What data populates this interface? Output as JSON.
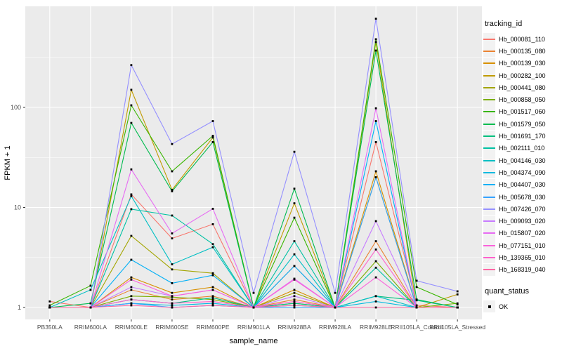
{
  "chart_data": {
    "type": "line",
    "title": "",
    "xlabel": "sample_name",
    "ylabel": "FPKM + 1",
    "y_scale": "log10",
    "y_tick_labels": [
      "1",
      "10",
      "100"
    ],
    "y_tick_values": [
      1,
      10,
      100
    ],
    "y_minor_gridlines": [
      3.1623,
      31.623,
      316.23
    ],
    "ylim": [
      0.93,
      1020
    ],
    "grid": "on",
    "legend_position": "right",
    "legend_title": "tracking_id",
    "point_legend": {
      "title": "quant_status",
      "label": "OK"
    },
    "panel_bg": "#EBEBEB",
    "grid_color": "#FFFFFF",
    "tick_label_color": "#4D4D4D",
    "point_color": "#000000",
    "categories": [
      "PB350LA",
      "RRIM600LA",
      "RRIM600LE",
      "RRIM600SE",
      "RRIM600PE",
      "RRIM901LA",
      "RRIM928BA",
      "RRIM928LA",
      "RRIM928LE",
      "RRII105LA_Control",
      "RRII105LA_Stressed"
    ],
    "series": [
      {
        "name": "Hb_000081_110",
        "color": "#F8766D",
        "values": [
          1.15,
          1.0,
          13.5,
          4.9,
          6.8,
          1.0,
          2.6,
          1.0,
          45,
          1.05,
          1.0
        ]
      },
      {
        "name": "Hb_000135_080",
        "color": "#EA8331",
        "values": [
          1.0,
          1.0,
          1.5,
          1.2,
          1.3,
          1.0,
          1.2,
          1.0,
          4.6,
          1.0,
          1.0
        ]
      },
      {
        "name": "Hb_000139_030",
        "color": "#D89000",
        "values": [
          1.0,
          1.0,
          2.0,
          1.4,
          1.6,
          1.0,
          1.5,
          1.0,
          23,
          1.0,
          1.0
        ]
      },
      {
        "name": "Hb_000282_100",
        "color": "#C09B00",
        "values": [
          1.0,
          1.0,
          150,
          15,
          50,
          1.0,
          11,
          1.0,
          450,
          1.0,
          1.35
        ]
      },
      {
        "name": "Hb_000441_080",
        "color": "#A3A500",
        "values": [
          1.0,
          1.0,
          5.2,
          2.4,
          2.2,
          1.0,
          1.4,
          1.0,
          20,
          1.0,
          1.0
        ]
      },
      {
        "name": "Hb_000858_050",
        "color": "#7CAE00",
        "values": [
          1.0,
          1.0,
          1.3,
          1.27,
          1.2,
          1.0,
          1.1,
          1.0,
          2.9,
          1.0,
          1.1
        ]
      },
      {
        "name": "Hb_001517_060",
        "color": "#39B600",
        "values": [
          1.05,
          1.65,
          105,
          23,
          52,
          1.0,
          7.9,
          1.0,
          480,
          1.6,
          1.07
        ]
      },
      {
        "name": "Hb_001579_050",
        "color": "#00BB4E",
        "values": [
          1.0,
          1.1,
          70,
          14.5,
          45,
          1.0,
          15.4,
          1.0,
          370,
          1.2,
          1.0
        ]
      },
      {
        "name": "Hb_001691_170",
        "color": "#00BF7D",
        "values": [
          1.0,
          1.0,
          1.2,
          1.1,
          1.25,
          1.0,
          1.1,
          1.0,
          1.3,
          1.18,
          1.0
        ]
      },
      {
        "name": "Hb_002111_010",
        "color": "#00C1A3",
        "values": [
          1.0,
          1.0,
          9.6,
          8.3,
          4.3,
          1.0,
          4.6,
          1.0,
          2.5,
          1.0,
          1.0
        ]
      },
      {
        "name": "Hb_004146_030",
        "color": "#00BFC4",
        "values": [
          1.0,
          1.5,
          13.0,
          2.7,
          4.0,
          1.0,
          3.4,
          1.0,
          1.3,
          1.0,
          1.0
        ]
      },
      {
        "name": "Hb_004374_090",
        "color": "#00BAE0",
        "values": [
          1.0,
          1.0,
          1.1,
          1.05,
          1.1,
          1.0,
          1.05,
          1.0,
          1.15,
          1.0,
          1.0
        ]
      },
      {
        "name": "Hb_004407_030",
        "color": "#00B0F6",
        "values": [
          1.0,
          1.0,
          3.0,
          1.75,
          2.1,
          1.0,
          2.6,
          1.0,
          73,
          1.0,
          1.0
        ]
      },
      {
        "name": "Hb_005678_030",
        "color": "#35A2FF",
        "values": [
          1.0,
          1.0,
          1.1,
          1.0,
          1.05,
          1.0,
          1.0,
          1.0,
          20,
          1.0,
          1.0
        ]
      },
      {
        "name": "Hb_007426_070",
        "color": "#9590FF",
        "values": [
          1.0,
          1.0,
          265,
          43,
          73,
          1.4,
          36,
          1.4,
          770,
          1.85,
          1.45
        ]
      },
      {
        "name": "Hb_009093_020",
        "color": "#C77CFF",
        "values": [
          1.0,
          1.0,
          1.6,
          1.3,
          1.5,
          1.0,
          1.3,
          1.0,
          7.3,
          1.0,
          1.0
        ]
      },
      {
        "name": "Hb_015807_020",
        "color": "#E76BF3",
        "values": [
          1.0,
          1.0,
          24,
          5.5,
          9.7,
          1.0,
          1.94,
          1.0,
          98,
          1.0,
          1.0
        ]
      },
      {
        "name": "Hb_077151_010",
        "color": "#FA62DB",
        "values": [
          1.0,
          1.0,
          1.9,
          1.3,
          1.5,
          1.0,
          1.9,
          1.0,
          2.0,
          1.0,
          1.0
        ]
      },
      {
        "name": "Hb_139365_010",
        "color": "#FF61CC",
        "values": [
          1.0,
          1.0,
          1.2,
          1.1,
          1.15,
          1.0,
          1.15,
          1.0,
          3.8,
          1.0,
          1.0
        ]
      },
      {
        "name": "Hb_168319_040",
        "color": "#FF67A4",
        "values": [
          1.0,
          1.0,
          1.05,
          1.0,
          1.05,
          1.0,
          1.05,
          1.0,
          1.0,
          1.0,
          1.0
        ]
      }
    ]
  }
}
